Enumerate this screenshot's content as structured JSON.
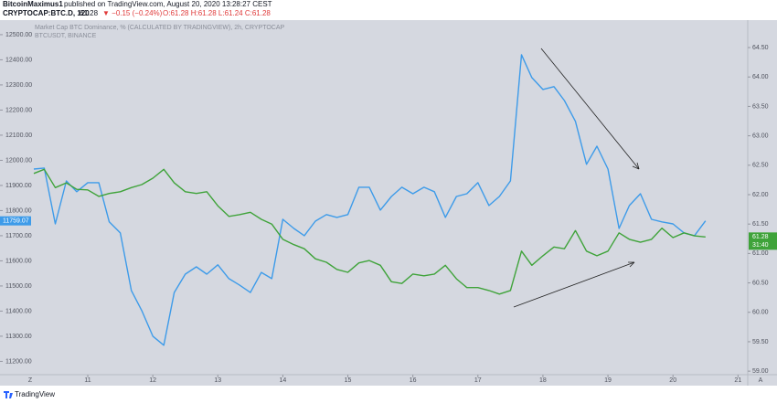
{
  "header": {
    "author": "BitcoinMaximus1",
    "published": "published on TradingView.com, August 20, 2020 13:28:27 CEST",
    "symbol": "CRYPTOCAP:BTC.D, 120",
    "last": "61.28",
    "change": "▼ −0.15 (−0.24%)",
    "ohlc": "O:61.28 H:61.28 L:61.24 C:61.28"
  },
  "footer": {
    "brand": "TradingView"
  },
  "chart_data": {
    "type": "line",
    "legend_lines": [
      "Market Cap BTC Dominance, % (CALCULATED BY TRADINGVIEW), 2h, CRYPTOCAP",
      "BTCUSDT, BINANCE"
    ],
    "x": [
      10.17,
      10.33,
      10.5,
      10.67,
      10.83,
      11.0,
      11.17,
      11.33,
      11.5,
      11.67,
      11.83,
      12.0,
      12.17,
      12.33,
      12.5,
      12.67,
      12.83,
      13.0,
      13.17,
      13.33,
      13.5,
      13.67,
      13.83,
      14.0,
      14.17,
      14.33,
      14.5,
      14.67,
      14.83,
      15.0,
      15.17,
      15.33,
      15.5,
      15.67,
      15.83,
      16.0,
      16.17,
      16.33,
      16.5,
      16.67,
      16.83,
      17.0,
      17.17,
      17.33,
      17.5,
      17.67,
      17.83,
      18.0,
      18.17,
      18.33,
      18.5,
      18.67,
      18.83,
      19.0,
      19.17,
      19.33,
      19.5,
      19.67,
      19.83,
      20.0,
      20.17,
      20.33,
      20.5
    ],
    "series": [
      {
        "name": "BTCUSDT",
        "color": "#3d9be9",
        "axis": "y",
        "last_label": "11759.07",
        "values": [
          11965,
          11969,
          11747,
          11918,
          11875,
          11911,
          11911,
          11755,
          11711,
          11482,
          11402,
          11300,
          11264,
          11474,
          11547,
          11576,
          11547,
          11584,
          11529,
          11504,
          11474,
          11554,
          11529,
          11765,
          11729,
          11700,
          11758,
          11784,
          11773,
          11784,
          11893,
          11893,
          11802,
          11856,
          11893,
          11867,
          11893,
          11875,
          11773,
          11856,
          11867,
          11911,
          11820,
          11856,
          11918,
          12420,
          12329,
          12282,
          12293,
          12238,
          12155,
          11984,
          12056,
          11965,
          11729,
          11820,
          11867,
          11765,
          11755,
          11747,
          11711,
          11700,
          11759.07
        ]
      },
      {
        "name": "BTC.D",
        "color": "#3fa33a",
        "axis": "y2",
        "last_label": "61.28",
        "countdown": "31:40",
        "values": [
          62.36,
          62.43,
          62.12,
          62.2,
          62.09,
          62.08,
          61.97,
          62.02,
          62.05,
          62.12,
          62.17,
          62.28,
          62.43,
          62.2,
          62.05,
          62.02,
          62.05,
          61.81,
          61.63,
          61.66,
          61.7,
          61.58,
          61.5,
          61.24,
          61.15,
          61.08,
          60.91,
          60.85,
          60.73,
          60.68,
          60.84,
          60.88,
          60.8,
          60.52,
          60.49,
          60.65,
          60.62,
          60.65,
          60.8,
          60.57,
          60.42,
          60.42,
          60.37,
          60.31,
          60.37,
          61.04,
          60.8,
          60.96,
          61.11,
          61.08,
          61.39,
          61.04,
          60.96,
          61.04,
          61.35,
          61.24,
          61.19,
          61.24,
          61.43,
          61.27,
          61.35,
          61.3,
          61.28
        ]
      }
    ],
    "xlim": [
      9.65,
      21.15
    ],
    "xticks": [
      11,
      12,
      13,
      14,
      15,
      16,
      17,
      18,
      19,
      20,
      21
    ],
    "x_edge_labels": [
      "Z",
      "A"
    ],
    "ylim": [
      11147,
      12547
    ],
    "yticks": [
      {
        "value": 11200,
        "label": "11200.00"
      },
      {
        "value": 11300,
        "label": "11300.00"
      },
      {
        "value": 11400,
        "label": "11400.00"
      },
      {
        "value": 11500,
        "label": "11500.00"
      },
      {
        "value": 11600,
        "label": "11600.00"
      },
      {
        "value": 11700,
        "label": "11700.00"
      },
      {
        "value": 11800,
        "label": "11800.00"
      },
      {
        "value": 11900,
        "label": "11900.00"
      },
      {
        "value": 12000,
        "label": "12000.00"
      },
      {
        "value": 12100,
        "label": "12100.00"
      },
      {
        "value": 12200,
        "label": "12200.00"
      },
      {
        "value": 12300,
        "label": "12300.00"
      },
      {
        "value": 12400,
        "label": "12400.00"
      },
      {
        "value": 12500,
        "label": "12500.00"
      }
    ],
    "y2lim": [
      58.94,
      64.92
    ],
    "y2ticks": [
      {
        "value": 59,
        "label": "59.00"
      },
      {
        "value": 59.5,
        "label": "59.50"
      },
      {
        "value": 60,
        "label": "60.00"
      },
      {
        "value": 60.5,
        "label": "60.50"
      },
      {
        "value": 61,
        "label": "61.00"
      },
      {
        "value": 61.5,
        "label": "61.50"
      },
      {
        "value": 62,
        "label": "62.00"
      },
      {
        "value": 62.5,
        "label": "62.50"
      },
      {
        "value": 63,
        "label": "63.00"
      },
      {
        "value": 63.5,
        "label": "63.50"
      },
      {
        "value": 64,
        "label": "64.00"
      },
      {
        "value": 64.5,
        "label": "64.50"
      }
    ],
    "grid": false
  }
}
